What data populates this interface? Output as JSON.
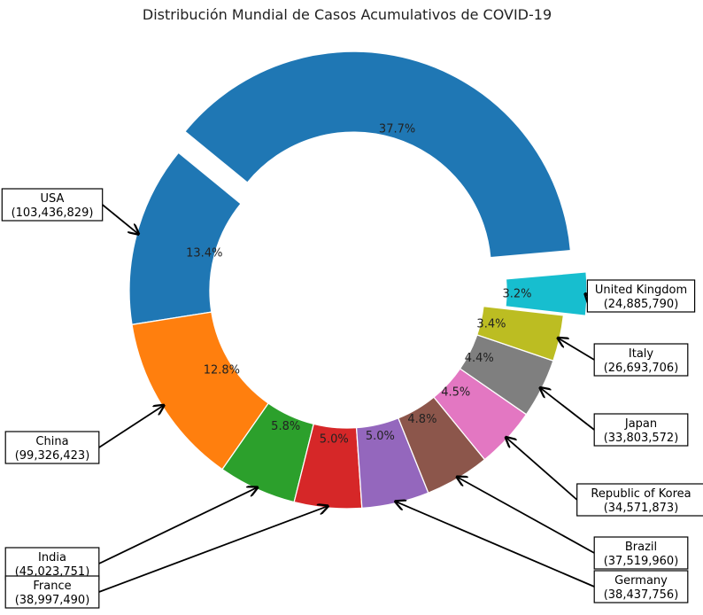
{
  "chart_data": {
    "type": "pie",
    "style": "donut",
    "title": "Distribución Mundial de Casos Acumulativos de COVID-19",
    "start_angle_deg": 5,
    "direction": "counterclockwise",
    "explode": "first-and-last",
    "slices": [
      {
        "label": "",
        "value": 37.7,
        "pct_label": "37.7%",
        "color": "#1f77b4"
      },
      {
        "label": "USA",
        "sublabel": "(103,436,829)",
        "value": 13.4,
        "pct_label": "13.4%",
        "color": "#1f77b4"
      },
      {
        "label": "China",
        "sublabel": "(99,326,423)",
        "value": 12.8,
        "pct_label": "12.8%",
        "color": "#ff7f0e"
      },
      {
        "label": "India",
        "sublabel": "(45,023,751)",
        "value": 5.8,
        "pct_label": "5.8%",
        "color": "#2ca02c"
      },
      {
        "label": "France",
        "sublabel": "(38,997,490)",
        "value": 5.0,
        "pct_label": "5.0%",
        "color": "#d62728"
      },
      {
        "label": "Germany",
        "sublabel": "(38,437,756)",
        "value": 5.0,
        "pct_label": "5.0%",
        "color": "#9467bd"
      },
      {
        "label": "Brazil",
        "sublabel": "(37,519,960)",
        "value": 4.8,
        "pct_label": "4.8%",
        "color": "#8c564b"
      },
      {
        "label": "Republic of Korea",
        "sublabel": "(34,571,873)",
        "value": 4.5,
        "pct_label": "4.5%",
        "color": "#e377c2"
      },
      {
        "label": "Japan",
        "sublabel": "(33,803,572)",
        "value": 4.4,
        "pct_label": "4.4%",
        "color": "#7f7f7f"
      },
      {
        "label": "Italy",
        "sublabel": "(26,693,706)",
        "value": 3.4,
        "pct_label": "3.4%",
        "color": "#bcbd22"
      },
      {
        "label": "United Kingdom",
        "sublabel": "(24,885,790)",
        "value": 3.2,
        "pct_label": "3.2%",
        "color": "#17becf"
      }
    ]
  }
}
